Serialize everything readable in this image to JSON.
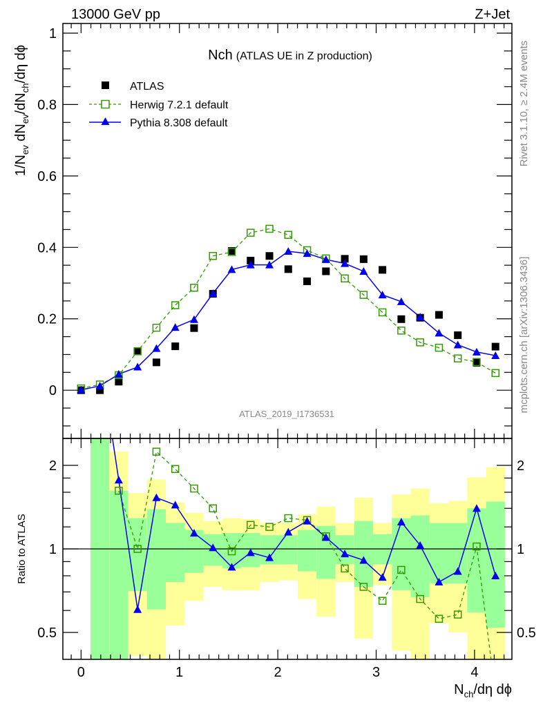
{
  "header": {
    "energy": "13000 GeV pp",
    "process": "Z+Jet"
  },
  "side_text": {
    "rivet": "Rivet 3.1.10, ≥ 2.4M events",
    "mcplots": "mcplots.cern.ch [arXiv:1306.3436]"
  },
  "analysis_id": "ATLAS_2019_I1736531",
  "colors": {
    "atlas": "#000000",
    "herwig": "#339900",
    "pythia": "#0000ee",
    "band1": "#99ff99",
    "band2": "#ffff99"
  },
  "chart_data": [
    {
      "type": "scatter",
      "title_main": "Nch",
      "title_sub": "(ATLAS UE in Z production)",
      "ylabel": {
        "a": "1/N",
        "a_sub": "ev",
        "b": " dN",
        "b_sub": "ev",
        "c": "/dN",
        "c_sub": "ch",
        "d": "/dη dϕ"
      },
      "xlim": [
        -0.185,
        4.38
      ],
      "ylim": [
        -0.135,
        1.027
      ],
      "yticks": [
        "0",
        "0.2",
        "0.4",
        "0.6",
        "0.8",
        "1"
      ],
      "x": [
        0,
        0.1915,
        0.383,
        0.5745,
        0.766,
        0.9575,
        1.149,
        1.3405,
        1.532,
        1.7235,
        1.915,
        2.1065,
        2.298,
        2.4895,
        2.681,
        2.8725,
        3.064,
        3.2555,
        3.447,
        3.6385,
        3.83,
        4.0215,
        4.213
      ],
      "legend": [
        "ATLAS",
        "Herwig 7.2.1 default",
        "Pythia 8.308 default"
      ],
      "legend_position": "top-left",
      "series": [
        {
          "name": "ATLAS",
          "marker": "filled-square",
          "values": [
            0.0,
            0.0,
            0.024,
            0.109,
            0.078,
            0.123,
            0.174,
            0.27,
            0.39,
            0.363,
            0.376,
            0.339,
            0.305,
            0.333,
            0.368,
            0.367,
            0.337,
            0.199,
            0.203,
            0.211,
            0.154,
            0.077,
            0.122
          ]
        },
        {
          "name": "Herwig 7.2.1 default",
          "marker": "open-square",
          "line": "dashed",
          "values": [
            0.005,
            0.016,
            0.042,
            0.109,
            0.175,
            0.238,
            0.287,
            0.376,
            0.387,
            0.441,
            0.452,
            0.435,
            0.392,
            0.369,
            0.313,
            0.267,
            0.218,
            0.167,
            0.134,
            0.119,
            0.089,
            0.079,
            0.048
          ]
        },
        {
          "name": "Pythia 8.308 default",
          "marker": "filled-triangle",
          "line": "solid",
          "values": [
            0.001,
            0.012,
            0.045,
            0.065,
            0.117,
            0.176,
            0.198,
            0.271,
            0.338,
            0.351,
            0.351,
            0.389,
            0.383,
            0.366,
            0.355,
            0.333,
            0.267,
            0.248,
            0.205,
            0.16,
            0.127,
            0.107,
            0.097
          ]
        }
      ]
    },
    {
      "type": "line",
      "ylabel": "Ratio to ATLAS",
      "xlabel": {
        "a": "N",
        "a_sub": "ch",
        "b": "/dη dϕ"
      },
      "xticks": [
        "0",
        "1",
        "2",
        "3",
        "4"
      ],
      "yticks": [
        "0.5",
        "1",
        "2"
      ],
      "yscale": "log",
      "ylim": [
        0.4,
        2.5
      ],
      "xlim": [
        -0.185,
        4.38
      ],
      "bands": [
        null,
        [
          0.3,
          0.3,
          3,
          3
        ],
        [
          0.3,
          0.3,
          1.62,
          2.24
        ],
        [
          0.411,
          0.705,
          1.29,
          1.59
        ],
        [
          0.3,
          0.605,
          1.39,
          1.78
        ],
        [
          0.53,
          0.76,
          1.24,
          1.47
        ],
        [
          0.65,
          0.82,
          1.17,
          1.35
        ],
        [
          0.73,
          0.87,
          1.13,
          1.26
        ],
        [
          0.71,
          0.85,
          1.14,
          1.29
        ],
        [
          0.71,
          0.86,
          1.14,
          1.28
        ],
        [
          0.76,
          0.88,
          1.12,
          1.24
        ],
        [
          0.77,
          0.88,
          1.12,
          1.24
        ],
        [
          0.66,
          0.83,
          1.17,
          1.33
        ],
        [
          0.57,
          0.78,
          1.21,
          1.42
        ],
        [
          0.76,
          0.88,
          1.12,
          1.24
        ],
        [
          0.475,
          0.73,
          1.26,
          1.53
        ],
        [
          0.74,
          0.88,
          1.13,
          1.24
        ],
        [
          0.43,
          0.71,
          1.29,
          1.57
        ],
        [
          0.3,
          0.67,
          1.32,
          1.65
        ],
        [
          0.54,
          0.75,
          1.24,
          1.46
        ],
        [
          0.5,
          0.75,
          1.24,
          1.49
        ],
        [
          0.3,
          0.59,
          1.4,
          1.81
        ],
        [
          0.3,
          0.52,
          1.48,
          1.97
        ]
      ],
      "bands_format": "[2sigma_low, 1sigma_low, 1sigma_high, 2sigma_high]",
      "series": [
        {
          "name": "Herwig 7.2.1 default",
          "values": [
            null,
            null,
            1.62,
            1.0,
            2.24,
            1.94,
            1.65,
            1.4,
            0.98,
            1.22,
            1.2,
            1.29,
            1.27,
            1.11,
            0.85,
            0.73,
            0.65,
            0.84,
            0.66,
            0.56,
            0.58,
            1.02,
            0.3
          ]
        },
        {
          "name": "Pythia 8.308 default",
          "values": [
            null,
            5,
            1.77,
            0.605,
            1.53,
            1.44,
            1.14,
            1.01,
            0.86,
            0.97,
            0.93,
            1.15,
            1.26,
            1.1,
            0.96,
            0.91,
            0.79,
            1.25,
            1.03,
            0.76,
            0.83,
            1.4,
            0.8
          ]
        }
      ]
    }
  ]
}
